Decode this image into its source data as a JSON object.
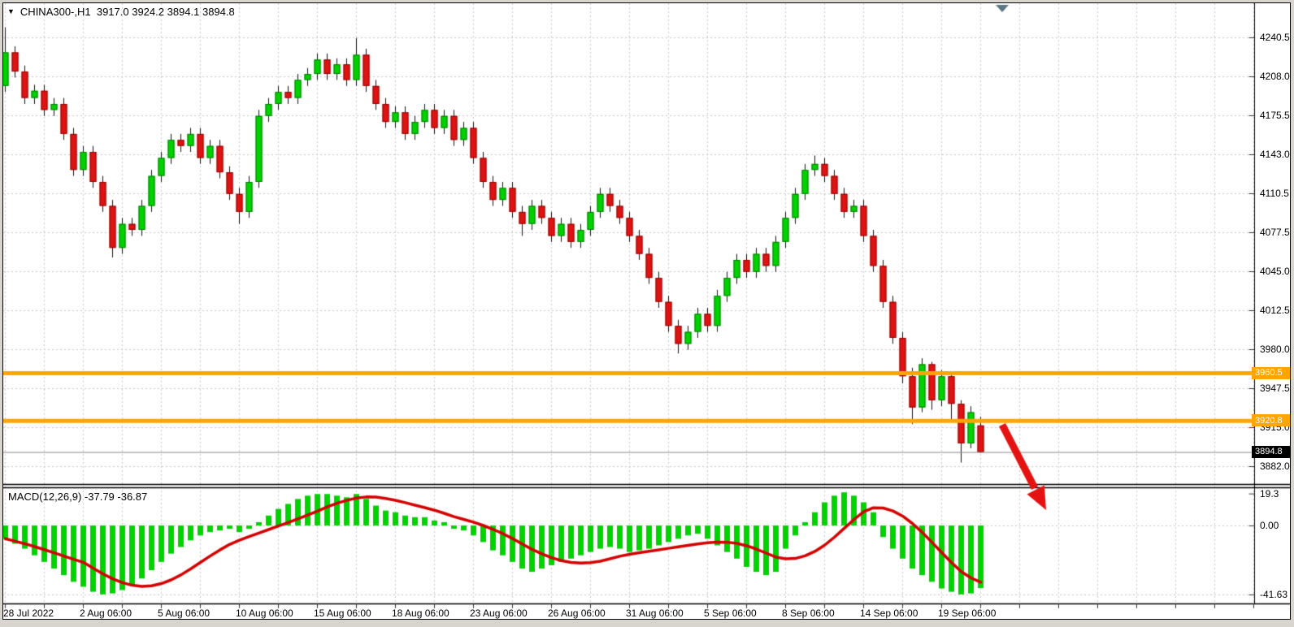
{
  "chart_window": {
    "title_icon": "▼",
    "title": "CHINA300-,H1  3917.0 3924.2 3894.1 3894.8",
    "symbol": "CHINA300-",
    "timeframe": "H1",
    "ohlc": {
      "open": "3917.0",
      "high": "3924.2",
      "low": "3894.1",
      "close": "3894.8"
    }
  },
  "colors": {
    "background": "#ffffff",
    "grid": "#c7c7c7",
    "candle_up_fill": "#00d200",
    "candle_up_border": "#067a06",
    "candle_down_fill": "#e01212",
    "candle_down_border": "#8c0606",
    "wick": "#111111",
    "hline_orange": "#ffa500",
    "current_price_line": "#8a8a8a",
    "macd_histogram": "#00d200",
    "macd_signal": "#d40000",
    "arrow_red": "#e51212",
    "shift_marker": "#5b7784",
    "tag_black_bg": "#000000",
    "axis_text": "#000000"
  },
  "price_scale": {
    "labels": [
      "4240.5",
      "4208.0",
      "4175.5",
      "4143.0",
      "4110.5",
      "4077.5",
      "4045.0",
      "4012.5",
      "3980.0",
      "3947.5",
      "3915.0",
      "3882.0"
    ]
  },
  "time_scale": {
    "labels": [
      "28 Jul 2022",
      "2 Aug 06:00",
      "5 Aug 06:00",
      "10 Aug 06:00",
      "15 Aug 06:00",
      "18 Aug 06:00",
      "23 Aug 06:00",
      "26 Aug 06:00",
      "31 Aug 06:00",
      "5 Sep 06:00",
      "8 Sep 06:00",
      "14 Sep 06:00",
      "19 Sep 06:00"
    ]
  },
  "macd_panel": {
    "label": "MACD(12,26,9) -37.79 -36.87",
    "scale_labels": [
      "19.3",
      "0.00",
      "-41.63"
    ],
    "macd_value": -37.79,
    "signal_value": -36.87
  },
  "horizontal_lines": [
    {
      "price": 3960.5,
      "tag": "3960.5"
    },
    {
      "price": 3920.8,
      "tag": "3920.8"
    }
  ],
  "current_price_tag": {
    "price": 3894.8,
    "tag": "3894.8"
  },
  "annotations": {
    "red_arrow": "thick red arrow pointing down-right below last candles"
  },
  "chart_data": {
    "type": "candlestick",
    "title": "CHINA300-,H1",
    "price_axis_ticks": [
      4240.5,
      4208.0,
      4175.5,
      4143.0,
      4110.5,
      4077.5,
      4045.0,
      4012.5,
      3980.0,
      3947.5,
      3915.0,
      3882.0
    ],
    "price_axis_step": 32.5,
    "x_tick_labels": [
      "28 Jul 2022",
      "2 Aug 06:00",
      "5 Aug 06:00",
      "10 Aug 06:00",
      "15 Aug 06:00",
      "18 Aug 06:00",
      "23 Aug 06:00",
      "26 Aug 06:00",
      "31 Aug 06:00",
      "5 Sep 06:00",
      "8 Sep 06:00",
      "14 Sep 06:00",
      "19 Sep 06:00"
    ],
    "grid": "dashed",
    "candles": [
      [
        4200,
        4249,
        4195,
        4228
      ],
      [
        4228,
        4233,
        4207,
        4212
      ],
      [
        4212,
        4217,
        4185,
        4190
      ],
      [
        4190,
        4201,
        4185,
        4196
      ],
      [
        4196,
        4201,
        4175,
        4180
      ],
      [
        4180,
        4190,
        4175,
        4185
      ],
      [
        4185,
        4190,
        4155,
        4160
      ],
      [
        4160,
        4165,
        4125,
        4130
      ],
      [
        4130,
        4150,
        4125,
        4145
      ],
      [
        4145,
        4150,
        4115,
        4120
      ],
      [
        4120,
        4125,
        4095,
        4100
      ],
      [
        4100,
        4105,
        4057,
        4065
      ],
      [
        4065,
        4090,
        4060,
        4085
      ],
      [
        4085,
        4090,
        4075,
        4080
      ],
      [
        4080,
        4105,
        4075,
        4100
      ],
      [
        4100,
        4130,
        4095,
        4125
      ],
      [
        4125,
        4145,
        4120,
        4140
      ],
      [
        4140,
        4160,
        4135,
        4155
      ],
      [
        4155,
        4160,
        4145,
        4150
      ],
      [
        4150,
        4165,
        4145,
        4160
      ],
      [
        4160,
        4165,
        4135,
        4140
      ],
      [
        4140,
        4155,
        4135,
        4150
      ],
      [
        4150,
        4155,
        4123,
        4128
      ],
      [
        4128,
        4133,
        4105,
        4110
      ],
      [
        4110,
        4115,
        4085,
        4095
      ],
      [
        4095,
        4125,
        4090,
        4120
      ],
      [
        4120,
        4180,
        4115,
        4175
      ],
      [
        4175,
        4190,
        4170,
        4185
      ],
      [
        4185,
        4200,
        4180,
        4195
      ],
      [
        4195,
        4200,
        4185,
        4190
      ],
      [
        4190,
        4210,
        4185,
        4205
      ],
      [
        4205,
        4215,
        4200,
        4210
      ],
      [
        4210,
        4227,
        4205,
        4222
      ],
      [
        4222,
        4227,
        4205,
        4210
      ],
      [
        4210,
        4223,
        4205,
        4218
      ],
      [
        4218,
        4223,
        4200,
        4205
      ],
      [
        4205,
        4240,
        4200,
        4226
      ],
      [
        4226,
        4231,
        4195,
        4200
      ],
      [
        4200,
        4205,
        4180,
        4185
      ],
      [
        4185,
        4190,
        4165,
        4170
      ],
      [
        4170,
        4183,
        4165,
        4178
      ],
      [
        4178,
        4183,
        4155,
        4160
      ],
      [
        4160,
        4175,
        4155,
        4170
      ],
      [
        4170,
        4185,
        4165,
        4180
      ],
      [
        4180,
        4185,
        4160,
        4165
      ],
      [
        4165,
        4180,
        4160,
        4175
      ],
      [
        4175,
        4180,
        4150,
        4155
      ],
      [
        4155,
        4170,
        4150,
        4165
      ],
      [
        4165,
        4170,
        4135,
        4140
      ],
      [
        4140,
        4145,
        4115,
        4120
      ],
      [
        4120,
        4125,
        4100,
        4105
      ],
      [
        4105,
        4120,
        4100,
        4115
      ],
      [
        4115,
        4120,
        4090,
        4095
      ],
      [
        4095,
        4100,
        4075,
        4085
      ],
      [
        4085,
        4105,
        4080,
        4100
      ],
      [
        4100,
        4105,
        4085,
        4090
      ],
      [
        4090,
        4095,
        4070,
        4075
      ],
      [
        4075,
        4090,
        4070,
        4085
      ],
      [
        4085,
        4090,
        4065,
        4070
      ],
      [
        4070,
        4085,
        4065,
        4080
      ],
      [
        4080,
        4100,
        4075,
        4095
      ],
      [
        4095,
        4115,
        4090,
        4110
      ],
      [
        4110,
        4115,
        4095,
        4100
      ],
      [
        4100,
        4105,
        4085,
        4090
      ],
      [
        4090,
        4095,
        4070,
        4075
      ],
      [
        4075,
        4080,
        4055,
        4060
      ],
      [
        4060,
        4065,
        4035,
        4040
      ],
      [
        4040,
        4045,
        4015,
        4020
      ],
      [
        4020,
        4025,
        3995,
        4000
      ],
      [
        4000,
        4005,
        3977,
        3985
      ],
      [
        3985,
        4000,
        3980,
        3995
      ],
      [
        3995,
        4015,
        3990,
        4010
      ],
      [
        4010,
        4015,
        3995,
        4000
      ],
      [
        4000,
        4030,
        3995,
        4025
      ],
      [
        4025,
        4045,
        4020,
        4040
      ],
      [
        4040,
        4060,
        4035,
        4055
      ],
      [
        4055,
        4060,
        4040,
        4045
      ],
      [
        4045,
        4065,
        4040,
        4060
      ],
      [
        4060,
        4065,
        4045,
        4050
      ],
      [
        4050,
        4075,
        4045,
        4070
      ],
      [
        4070,
        4095,
        4065,
        4090
      ],
      [
        4090,
        4115,
        4085,
        4110
      ],
      [
        4110,
        4135,
        4105,
        4130
      ],
      [
        4130,
        4142,
        4125,
        4135
      ],
      [
        4135,
        4140,
        4120,
        4125
      ],
      [
        4125,
        4130,
        4105,
        4110
      ],
      [
        4110,
        4115,
        4090,
        4095
      ],
      [
        4095,
        4105,
        4090,
        4100
      ],
      [
        4100,
        4105,
        4070,
        4075
      ],
      [
        4075,
        4080,
        4045,
        4050
      ],
      [
        4050,
        4055,
        4015,
        4020
      ],
      [
        4020,
        4025,
        3985,
        3990
      ],
      [
        3990,
        3995,
        3952,
        3958
      ],
      [
        3958,
        3965,
        3918,
        3932
      ],
      [
        3932,
        3973,
        3928,
        3968
      ],
      [
        3968,
        3970,
        3930,
        3938
      ],
      [
        3938,
        3963,
        3933,
        3958
      ],
      [
        3958,
        3960,
        3922,
        3935
      ],
      [
        3935,
        3938,
        3886,
        3902
      ],
      [
        3902,
        3933,
        3898,
        3928
      ],
      [
        3917,
        3924.2,
        3894.1,
        3894.8
      ]
    ],
    "indicator": {
      "type": "macd_histogram_with_signal",
      "params": "12,26,9",
      "range": [
        -41.63,
        19.3
      ],
      "signal_period": 9,
      "histogram": [
        -8,
        -11,
        -14,
        -18,
        -22,
        -26,
        -30,
        -34,
        -37,
        -40,
        -41.6,
        -41,
        -39,
        -36,
        -32,
        -27,
        -22,
        -17,
        -13,
        -9,
        -6,
        -4,
        -3,
        -2,
        -4,
        -2,
        2,
        6,
        10,
        13,
        16,
        18,
        19,
        19,
        18,
        17,
        19,
        16,
        12,
        9,
        8,
        6,
        5,
        5,
        3,
        2,
        -2,
        -3,
        -6,
        -10,
        -15,
        -18,
        -22,
        -26,
        -28,
        -26,
        -24,
        -22,
        -20,
        -18,
        -16,
        -14,
        -13,
        -14,
        -16,
        -15,
        -14,
        -12,
        -10,
        -8,
        -6,
        -5,
        -8,
        -12,
        -16,
        -20,
        -25,
        -28,
        -30,
        -28,
        -14,
        -6,
        2,
        8,
        14,
        18,
        20,
        18,
        14,
        8,
        -7,
        -14,
        -20,
        -26,
        -30,
        -34,
        -38,
        -40,
        -41.6,
        -41,
        -37.8
      ]
    }
  }
}
